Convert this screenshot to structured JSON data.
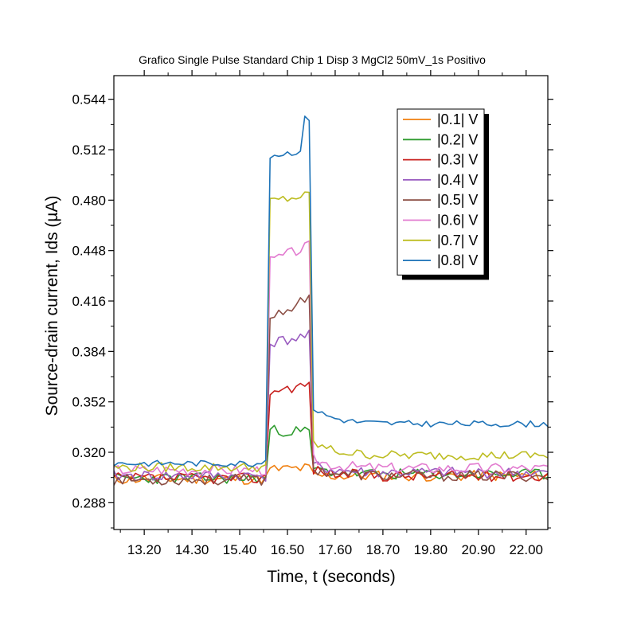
{
  "chart_data": {
    "type": "line",
    "title": "Grafico Single Pulse Standard Chip 1 Disp 3 MgCl2 50mV_1s Positivo",
    "xlabel": "Time, t (seconds)",
    "ylabel": "Source-drain current, Ids (µA)",
    "xlim": [
      12.5,
      22.5
    ],
    "ylim": [
      0.271,
      0.559
    ],
    "x_ticks": [
      13.2,
      14.3,
      15.4,
      16.5,
      17.6,
      18.7,
      19.8,
      20.9,
      22.0
    ],
    "x_tick_labels": [
      "13.20",
      "14.30",
      "15.40",
      "16.50",
      "17.60",
      "18.70",
      "19.80",
      "20.90",
      "22.00"
    ],
    "y_ticks": [
      0.288,
      0.32,
      0.352,
      0.384,
      0.416,
      0.448,
      0.48,
      0.512,
      0.544
    ],
    "y_tick_labels": [
      "0.288",
      "0.320",
      "0.352",
      "0.384",
      "0.416",
      "0.448",
      "0.480",
      "0.512",
      "0.544"
    ],
    "grid": false,
    "legend_position": "top-right",
    "pulse": {
      "start": 16.05,
      "end": 17.0
    },
    "series": [
      {
        "name": "|0.1| V",
        "color": "#F07F0F",
        "baseline": 0.303,
        "plateau": 0.309,
        "post": 0.305,
        "plateau_slope": 0.001,
        "end_spike": 0.0,
        "decay": 0.0,
        "noise": 0.0035,
        "seed": 11
      },
      {
        "name": "|0.2| V",
        "color": "#2E9B2E",
        "baseline": 0.3035,
        "plateau": 0.334,
        "post": 0.306,
        "plateau_slope": -0.001,
        "end_spike": 0.0,
        "decay": 0.004,
        "noise": 0.0035,
        "seed": 23
      },
      {
        "name": "|0.3| V",
        "color": "#C8211F",
        "baseline": 0.3035,
        "plateau": 0.359,
        "post": 0.305,
        "plateau_slope": 0.004,
        "end_spike": 0.0,
        "decay": 0.005,
        "noise": 0.0035,
        "seed": 37
      },
      {
        "name": "|0.4| V",
        "color": "#9A5CC0",
        "baseline": 0.305,
        "plateau": 0.389,
        "post": 0.307,
        "plateau_slope": 0.005,
        "end_spike": 0.0,
        "decay": 0.006,
        "noise": 0.0035,
        "seed": 41
      },
      {
        "name": "|0.5| V",
        "color": "#8C4F45",
        "baseline": 0.3025,
        "plateau": 0.406,
        "post": 0.305,
        "plateau_slope": 0.011,
        "end_spike": 0.0,
        "decay": 0.006,
        "noise": 0.0035,
        "seed": 53
      },
      {
        "name": "|0.6| V",
        "color": "#E27ACF",
        "baseline": 0.309,
        "plateau": 0.441,
        "post": 0.31,
        "plateau_slope": 0.01,
        "end_spike": 0.0,
        "decay": 0.007,
        "noise": 0.0035,
        "seed": 67
      },
      {
        "name": "|0.7| V",
        "color": "#BDBD22",
        "baseline": 0.3105,
        "plateau": 0.479,
        "post": 0.318,
        "plateau_slope": 0.004,
        "end_spike": 0.0,
        "decay": 0.01,
        "noise": 0.003,
        "seed": 79
      },
      {
        "name": "|0.8| V",
        "color": "#1F74B8",
        "baseline": 0.313,
        "plateau": 0.508,
        "post": 0.338,
        "plateau_slope": 0.004,
        "end_spike": 0.02,
        "decay": 0.012,
        "noise": 0.002,
        "seed": 83
      }
    ]
  }
}
